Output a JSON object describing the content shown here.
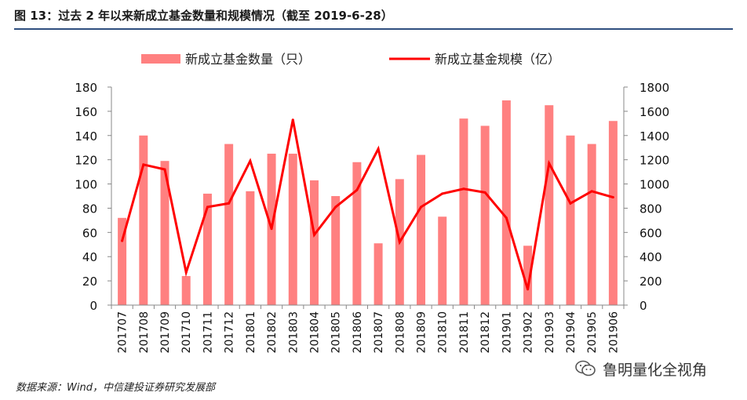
{
  "header": {
    "title": "图 13：过去 2 年以来新成立基金数量和规模情况（截至 2019-6-28）"
  },
  "footer": {
    "source": "数据来源：Wind，中信建投证券研究发展部",
    "watermark_text": "鲁明量化全视角",
    "watermark_icon": "wechat-icon"
  },
  "colors": {
    "bar": "#ff8080",
    "line": "#ff0000",
    "rule": "#2f4f7f",
    "axis": "#888888"
  },
  "chart_data": {
    "type": "bar",
    "title": "",
    "categories": [
      "201707",
      "201708",
      "201709",
      "201710",
      "201711",
      "201712",
      "201801",
      "201802",
      "201803",
      "201804",
      "201805",
      "201806",
      "201807",
      "201808",
      "201809",
      "201810",
      "201811",
      "201812",
      "201901",
      "201902",
      "201903",
      "201904",
      "201905",
      "201906"
    ],
    "series": [
      {
        "name": "新成立基金数量（只）",
        "type": "bar",
        "axis": "left",
        "values": [
          72,
          140,
          119,
          24,
          92,
          133,
          94,
          125,
          125,
          103,
          90,
          118,
          51,
          104,
          124,
          73,
          154,
          148,
          169,
          49,
          165,
          140,
          133,
          152
        ]
      },
      {
        "name": "新成立基金规模（亿）",
        "type": "line",
        "axis": "right",
        "values": [
          530,
          1160,
          1120,
          270,
          810,
          840,
          1190,
          630,
          1530,
          580,
          810,
          950,
          1290,
          520,
          810,
          920,
          960,
          930,
          720,
          130,
          1170,
          840,
          940,
          890
        ]
      }
    ],
    "ylim_left": [
      0,
      180
    ],
    "yticks_left": [
      "0",
      "20",
      "40",
      "60",
      "80",
      "100",
      "120",
      "140",
      "160",
      "180"
    ],
    "ylim_right": [
      0,
      1800
    ],
    "yticks_right": [
      "0",
      "200",
      "400",
      "600",
      "800",
      "1000",
      "1200",
      "1400",
      "1600",
      "1800"
    ],
    "xlabel": "",
    "ylabel": "",
    "legend_position": "top-center",
    "grid": false
  }
}
